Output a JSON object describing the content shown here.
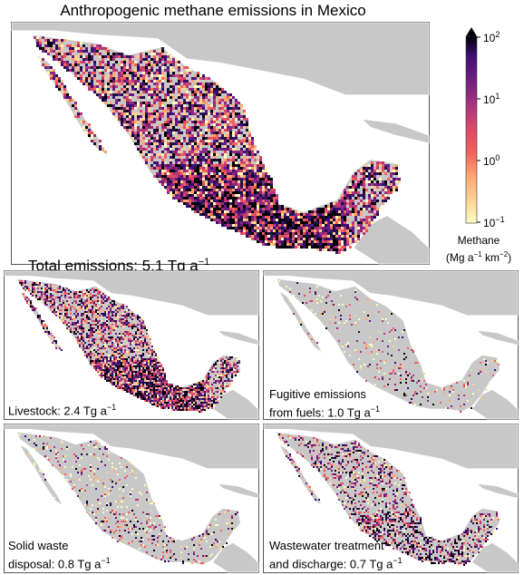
{
  "title": "Anthropogenic methane emissions in Mexico",
  "main_panel": {
    "label_text": "Total emissions: 5.1 Tg a",
    "label_exp": "−1"
  },
  "colorbar": {
    "title_line1": "Methane",
    "title_line2_pre": "(Mg a",
    "title_exp1": "−1",
    "title_mid": " km",
    "title_exp2": "−2",
    "title_post": ")",
    "scale": "log",
    "colormap": "magma-reversed",
    "ticks": [
      {
        "base": "10",
        "exp": "2"
      },
      {
        "base": "10",
        "exp": "1"
      },
      {
        "base": "10",
        "exp": "0"
      },
      {
        "base": "10",
        "exp": "−1"
      }
    ],
    "colors": [
      "#fcfdbf",
      "#fed395",
      "#fca772",
      "#f1605d",
      "#de4968",
      "#b73779",
      "#8c2981",
      "#641a80",
      "#3b0f70",
      "#1d1147",
      "#000004"
    ]
  },
  "panels": [
    {
      "id": "livestock",
      "line1": "Livestock: 2.4 Tg a",
      "line1_exp": "−1",
      "line2": "",
      "line2_exp": "",
      "density": 0.55
    },
    {
      "id": "fugitive",
      "line1": "Fugitive emissions",
      "line1_exp": "",
      "line2": "from fuels: 1.0 Tg a",
      "line2_exp": "−1",
      "density": 0.08
    },
    {
      "id": "solid-waste",
      "line1": "Solid waste",
      "line1_exp": "",
      "line2": "disposal: 0.8 Tg a",
      "line2_exp": "−1",
      "density": 0.12
    },
    {
      "id": "wastewater",
      "line1": "Wastewater treatment",
      "line1_exp": "",
      "line2": "and discharge: 0.7 Tg a",
      "line2_exp": "−1",
      "density": 0.3
    }
  ],
  "map_colors": {
    "land_gray": "#c8c8c8",
    "ocean": "#ffffff",
    "border": "#ffffff"
  }
}
